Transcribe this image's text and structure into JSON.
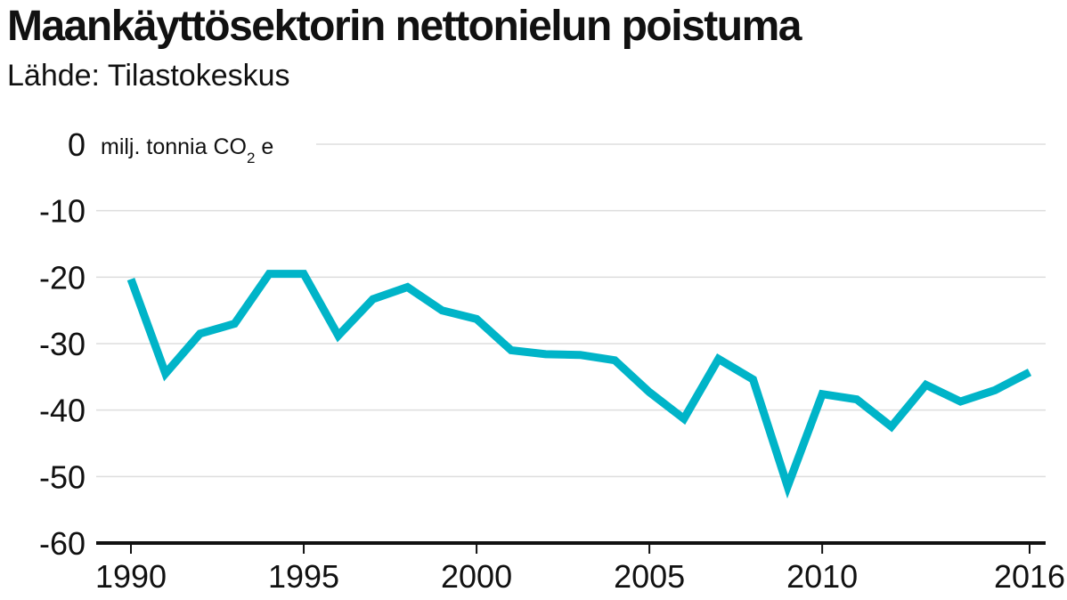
{
  "header": {
    "title": "Maankäyttösektorin nettonielun poistuma",
    "subtitle": "Lähde: Tilastokeskus"
  },
  "chart_data": {
    "type": "line",
    "title": "Maankäyttösektorin nettonielun poistuma",
    "subtitle": "Lähde: Tilastokeskus",
    "unit_label": {
      "prefix": "milj. tonnia CO",
      "subscript": "2",
      "suffix": " e"
    },
    "x": [
      1990,
      1991,
      1992,
      1993,
      1994,
      1995,
      1996,
      1997,
      1998,
      1999,
      2000,
      2001,
      2002,
      2003,
      2004,
      2005,
      2006,
      2007,
      2008,
      2009,
      2010,
      2011,
      2012,
      2013,
      2014,
      2015,
      2016
    ],
    "series": [
      {
        "values": [
          -20.3,
          -34.5,
          -28.5,
          -27.0,
          -19.5,
          -19.5,
          -28.8,
          -23.3,
          -21.5,
          -25.0,
          -26.3,
          -31.0,
          -31.6,
          -31.7,
          -32.5,
          -37.3,
          -41.3,
          -32.3,
          -35.4,
          -51.5,
          -37.6,
          -38.4,
          -42.5,
          -36.2,
          -38.7,
          -37.0,
          -34.3
        ],
        "color": "#00b4c8"
      }
    ],
    "xlim": [
      1990,
      2016
    ],
    "ylim": [
      -60,
      0
    ],
    "x_ticks": [
      1990,
      1995,
      2000,
      2005,
      2010,
      2016
    ],
    "x_tick_labels": [
      "1990",
      "1995",
      "2000",
      "2005",
      "2010",
      "2016"
    ],
    "y_ticks": [
      0,
      -10,
      -20,
      -30,
      -40,
      -50,
      -60
    ],
    "y_tick_labels": [
      "0",
      "-10",
      "-20",
      "-30",
      "-40",
      "-50",
      "-60"
    ],
    "grid": true,
    "legend": "none"
  },
  "colors": {
    "line": "#00b4c8",
    "grid": "#dddddd",
    "axis": "#111111",
    "text": "#111111"
  }
}
